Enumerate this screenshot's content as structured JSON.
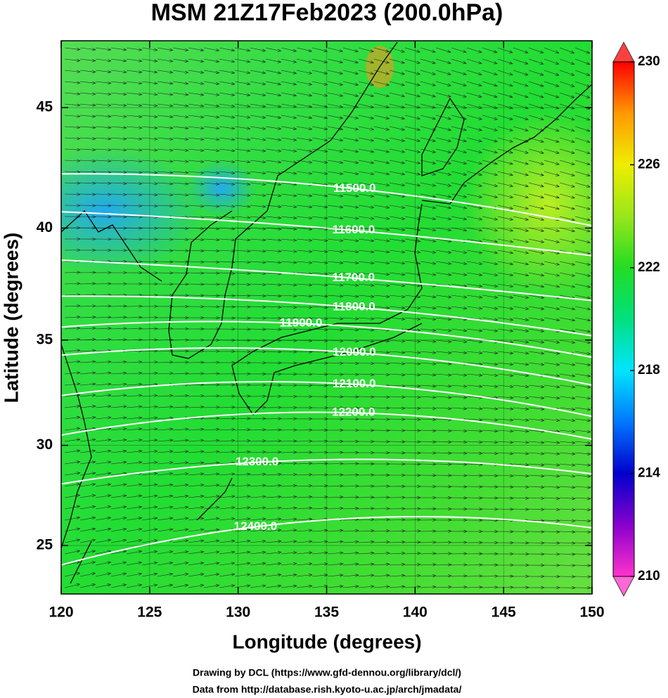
{
  "title": "MSM 21Z17Feb2023 (200.0hPa)",
  "xlabel": "Longitude (degrees)",
  "ylabel": "Latitude  (degrees)",
  "xlim": [
    120,
    150
  ],
  "ylim": [
    22.5,
    47.6
  ],
  "projection": "mercator",
  "xticks": [
    120,
    125,
    130,
    135,
    140,
    145,
    150
  ],
  "yticks": [
    25,
    30,
    35,
    40,
    45
  ],
  "colorbar": {
    "lim": [
      210,
      230
    ],
    "ticks": [
      210,
      214,
      218,
      222,
      226,
      230
    ],
    "stops": [
      {
        "value": 210,
        "color": "#ff33cc"
      },
      {
        "value": 212,
        "color": "#8800cc"
      },
      {
        "value": 214,
        "color": "#0000cc"
      },
      {
        "value": 216,
        "color": "#0077ff"
      },
      {
        "value": 218,
        "color": "#00e5ff"
      },
      {
        "value": 220,
        "color": "#00e080"
      },
      {
        "value": 222,
        "color": "#22dd22"
      },
      {
        "value": 224,
        "color": "#99e61a"
      },
      {
        "value": 226,
        "color": "#eeee00"
      },
      {
        "value": 228,
        "color": "#ff9900"
      },
      {
        "value": 230,
        "color": "#ff0000"
      }
    ]
  },
  "contours": [
    {
      "value": 11500,
      "label": "11500.0",
      "lat": [
        42.3,
        41.8,
        40.1
      ]
    },
    {
      "value": 11600,
      "label": "11600.0",
      "lat": [
        40.7,
        40.0,
        38.8
      ]
    },
    {
      "value": 11700,
      "label": "11700.0",
      "lat": [
        38.6,
        37.9,
        36.8
      ]
    },
    {
      "value": 11800,
      "label": "11800.0",
      "lat": [
        37.0,
        36.6,
        35.2
      ]
    },
    {
      "value": 11900,
      "label": "11900.0",
      "lat": [
        35.6,
        35.7,
        34.2
      ]
    },
    {
      "value": 12000,
      "label": "12000.0",
      "lat": [
        34.3,
        34.5,
        32.9
      ]
    },
    {
      "value": 12100,
      "label": "12100.0",
      "lat": [
        32.4,
        33.0,
        31.4
      ]
    },
    {
      "value": 12200,
      "label": "12200.0",
      "lat": [
        30.5,
        31.6,
        30.3
      ]
    },
    {
      "value": 12300,
      "label": "12300.0",
      "lat": [
        28.1,
        29.3,
        28.6
      ]
    },
    {
      "value": 12400,
      "label": "12400.0",
      "lat": [
        24.0,
        26.3,
        25.9
      ]
    }
  ],
  "credits": [
    "Drawing by DCL (https://www.gfd-dennou.org/library/dcl/)",
    "Data from http://database.rish.kyoto-u.ac.jp/arch/jmadata/"
  ]
}
